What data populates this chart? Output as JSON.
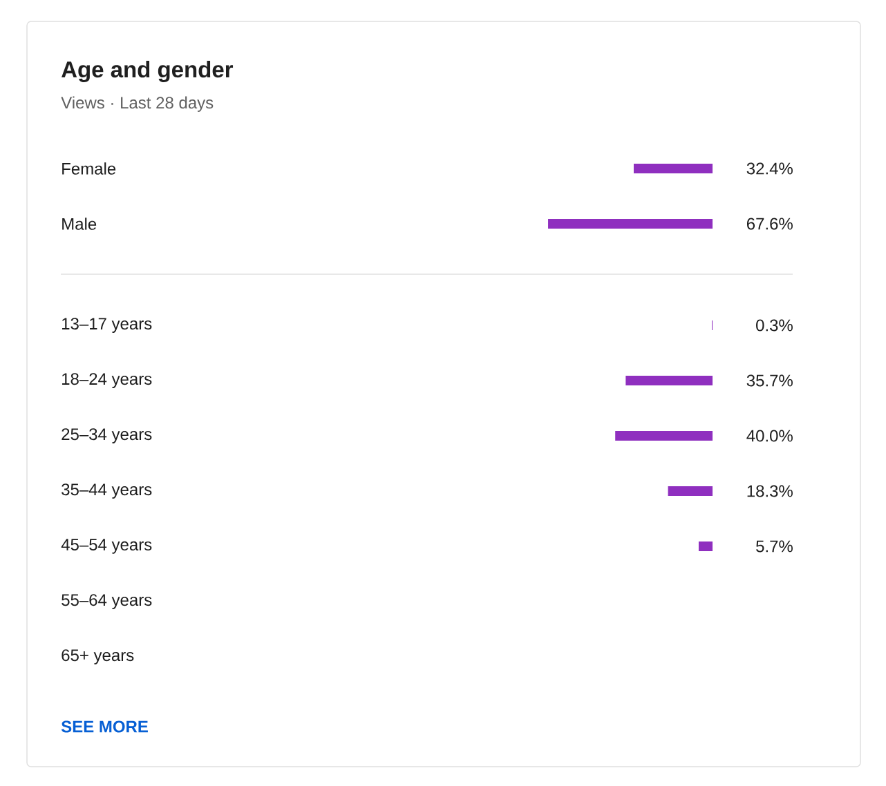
{
  "chart_data": [
    {
      "type": "bar",
      "orientation": "horizontal",
      "title": "Age and gender",
      "subtitle": "Views · Last 28 days",
      "categories": [
        "Female",
        "Male"
      ],
      "values": [
        32.4,
        67.6
      ],
      "value_labels": [
        "32.4%",
        "67.6%"
      ],
      "color": "#8f2fbf",
      "tick_labels": "y"
    },
    {
      "type": "bar",
      "orientation": "horizontal",
      "categories": [
        "13–17 years",
        "18–24 years",
        "25–34 years",
        "35–44 years",
        "45–54 years",
        "55–64 years",
        "65+ years"
      ],
      "values": [
        0.3,
        35.7,
        40.0,
        18.3,
        5.7,
        null,
        null
      ],
      "value_labels": [
        "0.3%",
        "35.7%",
        "40.0%",
        "18.3%",
        "5.7%",
        null,
        null
      ],
      "color": "#8f2fbf",
      "tick_labels": "y",
      "annotations": [
        "SEE MORE"
      ]
    }
  ]
}
